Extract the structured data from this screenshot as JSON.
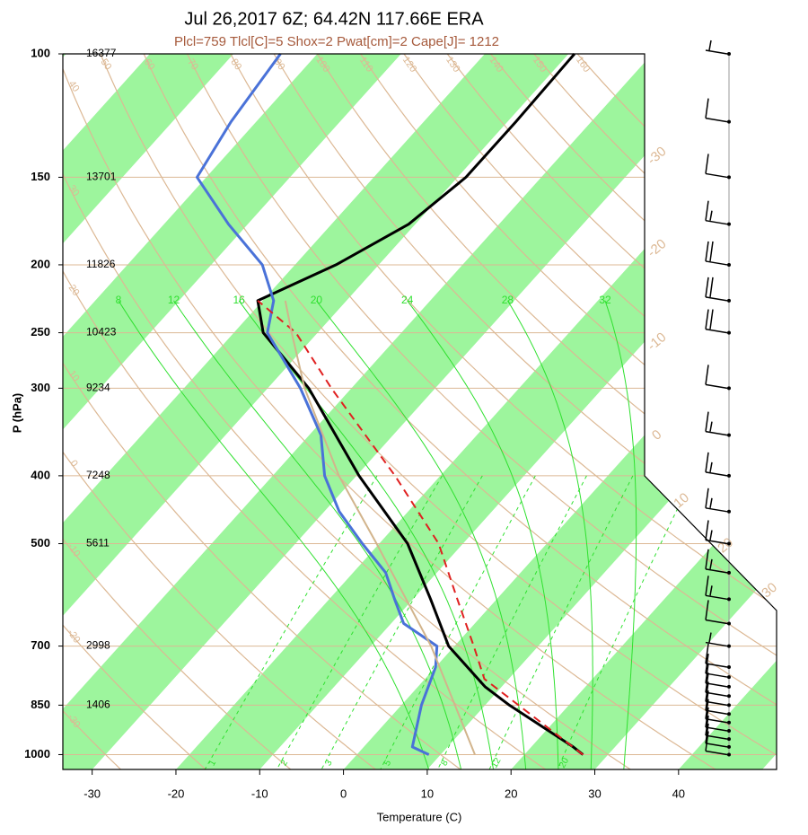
{
  "chart_data": {
    "type": "skewt",
    "title": "Jul 26,2017 6Z; 64.42N 117.66E ERA",
    "subtitle": "Plcl=759 Tlcl[C]=5 Shox=2 Pwat[cm]=2 Cape[J]= 1212",
    "x_label": "Temperature (C)",
    "y_label": "P (hPa)",
    "xlim": [
      -33.5,
      51.7
    ],
    "xticks": [
      -30,
      -20,
      -10,
      0,
      10,
      20,
      30,
      40
    ],
    "ylim": [
      100,
      1050
    ],
    "yticks": [
      100,
      150,
      200,
      250,
      300,
      400,
      500,
      700,
      850,
      1000
    ],
    "log_y": true,
    "heights": [
      16377,
      13701,
      11826,
      10423,
      9234,
      7248,
      5611,
      2998,
      1406,
      null
    ],
    "band_color": "#9df59d",
    "adiabat_color": "#dcb894",
    "moist_color": "#2fe02f",
    "isotherm_labels": [
      -30,
      -20,
      -10,
      0,
      10,
      20,
      30
    ],
    "dry_adiabats": [
      -30,
      -20,
      -10,
      0,
      10,
      20,
      30,
      40,
      50,
      60,
      70,
      80,
      90,
      100,
      110,
      120,
      130,
      140,
      150,
      160
    ],
    "mixing_ratios": [
      1,
      2,
      3,
      5,
      8,
      12,
      20
    ],
    "moist_adiabats": [
      8,
      12,
      16,
      20,
      24,
      28,
      32
    ],
    "series": [
      {
        "color": "#000000",
        "width": 3,
        "dash": false,
        "pressure": [
          1000,
          975,
          850,
          800,
          700,
          600,
          500,
          400,
          300,
          250,
          225,
          200,
          175,
          150,
          125,
          100
        ],
        "values": [
          27,
          25,
          12.9,
          8,
          -0.7,
          -7.9,
          -16.6,
          -29.7,
          -45.1,
          -56.5,
          -60.6,
          -55.1,
          -50.8,
          -49,
          -49,
          -49.3
        ]
      },
      {
        "color": "#4a72d8",
        "width": 3,
        "dash": false,
        "pressure": [
          1000,
          975,
          850,
          750,
          700,
          650,
          600,
          550,
          500,
          450,
          400,
          350,
          300,
          250,
          225,
          200,
          175,
          150,
          125,
          100
        ],
        "values": [
          8.6,
          5.8,
          2.4,
          0,
          -2.1,
          -8.5,
          -12.2,
          -16.1,
          -22,
          -28.2,
          -33.8,
          -38.6,
          -46.1,
          -56,
          -58.7,
          -63.9,
          -72.3,
          -81.1,
          -83,
          -84.4
        ]
      },
      {
        "color": "#e02020",
        "width": 2,
        "dash": true,
        "pressure": [
          1000,
          780,
          700,
          600,
          500,
          400,
          300,
          250,
          225
        ],
        "values": [
          27,
          7.1,
          2.3,
          -4.7,
          -12.9,
          -25.4,
          -42.4,
          -52.6,
          -60.6
        ]
      },
      {
        "color": "#d2b48c",
        "width": 2,
        "dash": false,
        "pressure": [
          1000,
          700,
          500,
          400,
          300,
          250,
          225
        ],
        "values": [
          14.1,
          -2.8,
          -20.3,
          -32.1,
          -45.6,
          -53.1,
          -57.3
        ]
      }
    ],
    "winds": {
      "pressure": [
        100,
        125,
        150,
        175,
        200,
        225,
        250,
        300,
        350,
        400,
        450,
        500,
        550,
        600,
        650,
        700,
        750,
        775,
        800,
        825,
        850,
        875,
        900,
        925,
        950,
        975,
        1000
      ],
      "speed": [
        5,
        10,
        10,
        15,
        20,
        20,
        20,
        10,
        15,
        15,
        15,
        15,
        15,
        15,
        10,
        5,
        10,
        10,
        10,
        10,
        10,
        10,
        10,
        10,
        10,
        10,
        10
      ]
    }
  }
}
